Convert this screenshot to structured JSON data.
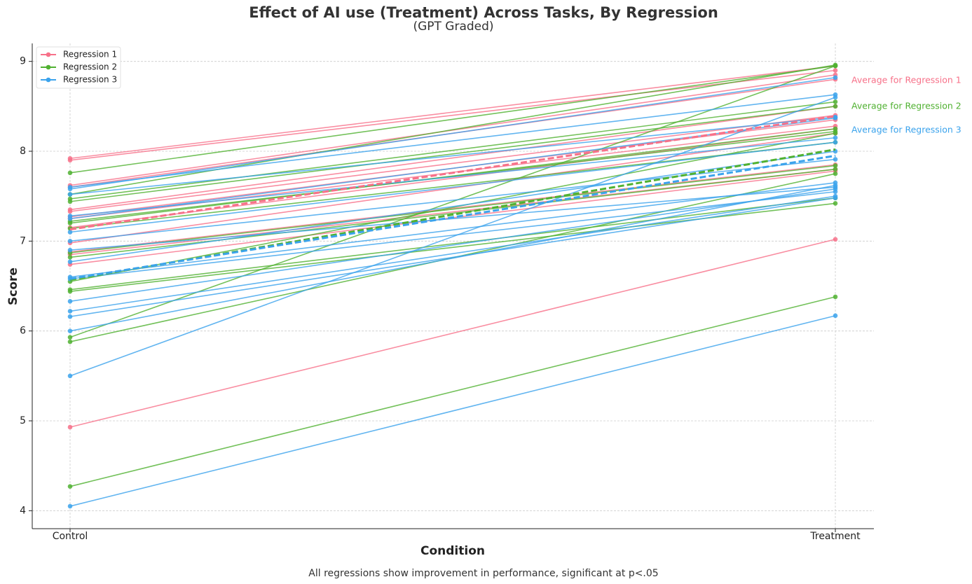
{
  "chart_data": {
    "type": "line",
    "title": "Effect of AI use (Treatment) Across Tasks, By Regression",
    "subtitle": "(GPT Graded)",
    "x_label": "Condition",
    "y_label": "Score",
    "note": "All regressions show improvement in performance, significant at p<.05",
    "categories": [
      "Control",
      "Treatment"
    ],
    "ylim": [
      3.8,
      9.2
    ],
    "yticks": [
      4,
      5,
      6,
      7,
      8,
      9
    ],
    "grid": true,
    "legend": "upper left",
    "series": [
      {
        "name": "Regression 1",
        "color": "#f77189",
        "average_label": "Average for Regression 1",
        "average": [
          7.13,
          8.39
        ],
        "lines": [
          [
            7.92,
            8.95
          ],
          [
            7.9,
            8.9
          ],
          [
            7.62,
            8.85
          ],
          [
            7.6,
            8.8
          ],
          [
            7.35,
            8.5
          ],
          [
            7.33,
            8.4
          ],
          [
            7.27,
            8.35
          ],
          [
            7.25,
            8.28
          ],
          [
            7.15,
            8.25
          ],
          [
            6.98,
            8.2
          ],
          [
            6.88,
            7.85
          ],
          [
            6.85,
            7.8
          ],
          [
            6.74,
            7.78
          ],
          [
            4.93,
            7.02
          ]
        ]
      },
      {
        "name": "Regression 2",
        "color": "#50b131",
        "average_label": "Average for Regression 2",
        "average": [
          6.57,
          8.02
        ],
        "lines": [
          [
            7.76,
            8.95
          ],
          [
            7.52,
            8.96
          ],
          [
            7.47,
            8.55
          ],
          [
            7.44,
            8.5
          ],
          [
            7.22,
            8.22
          ],
          [
            7.2,
            8.25
          ],
          [
            7.14,
            8.1
          ],
          [
            6.87,
            7.84
          ],
          [
            6.82,
            7.8
          ],
          [
            6.55,
            8.2
          ],
          [
            6.46,
            7.48
          ],
          [
            6.44,
            7.42
          ],
          [
            5.93,
            8.95
          ],
          [
            5.88,
            7.75
          ],
          [
            4.27,
            6.38
          ]
        ]
      },
      {
        "name": "Regression 3",
        "color": "#3ba3ec",
        "average_label": "Average for Regression 3",
        "average": [
          6.58,
          7.95
        ],
        "lines": [
          [
            7.6,
            8.63
          ],
          [
            7.58,
            8.82
          ],
          [
            7.52,
            8.38
          ],
          [
            7.28,
            8.15
          ],
          [
            7.25,
            8.37
          ],
          [
            7.1,
            8.1
          ],
          [
            7.0,
            7.91
          ],
          [
            6.9,
            7.6
          ],
          [
            6.77,
            8.0
          ],
          [
            6.6,
            7.65
          ],
          [
            6.58,
            7.55
          ],
          [
            6.33,
            7.58
          ],
          [
            6.22,
            7.5
          ],
          [
            6.16,
            7.48
          ],
          [
            6.0,
            7.62
          ],
          [
            5.5,
            8.6
          ],
          [
            4.05,
            6.17
          ]
        ]
      }
    ]
  }
}
